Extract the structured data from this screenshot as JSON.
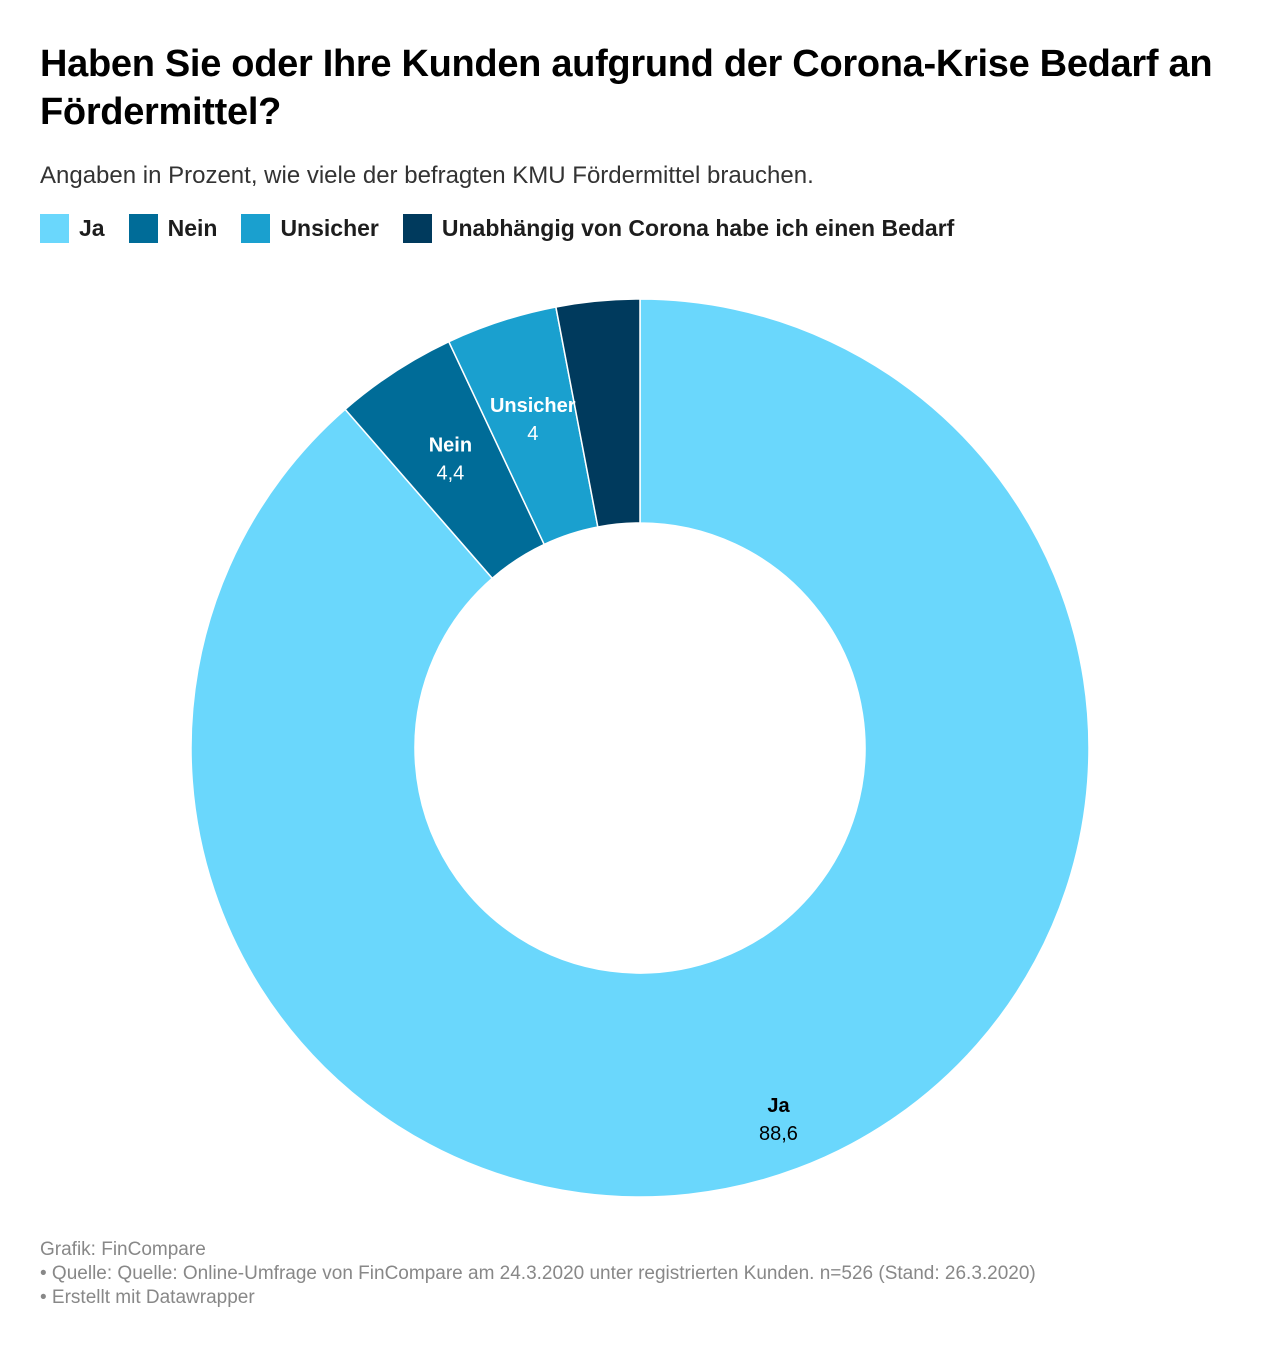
{
  "title": "Haben Sie oder Ihre Kunden aufgrund der Corona-Krise Bedarf an Fördermittel?",
  "subtitle": "Angaben in Prozent, wie viele der befragten KMU Fördermittel brauchen.",
  "legend": [
    {
      "label": "Ja",
      "color": "#6ad7fc"
    },
    {
      "label": "Nein",
      "color": "#006c98"
    },
    {
      "label": "Unsicher",
      "color": "#1aa0cf"
    },
    {
      "label": "Unabhängig von Corona habe ich einen Bedarf",
      "color": "#003a5d"
    }
  ],
  "chart_data": {
    "type": "pie",
    "variant": "donut",
    "title": "Haben Sie oder Ihre Kunden aufgrund der Corona-Krise Bedarf an Fördermittel?",
    "unit": "%",
    "categories": [
      "Ja",
      "Nein",
      "Unsicher",
      "Unabhängig von Corona habe ich einen Bedarf"
    ],
    "values": [
      88.6,
      4.4,
      4,
      3
    ],
    "value_labels": [
      "88,6",
      "4,4",
      "4",
      ""
    ],
    "colors": [
      "#6ad7fc",
      "#006c98",
      "#1aa0cf",
      "#003a5d"
    ],
    "label_colors": [
      "#000000",
      "#ffffff",
      "#ffffff",
      "#ffffff"
    ]
  },
  "footer": {
    "credit": "Grafik: FinCompare",
    "source": "• Quelle: Quelle: Online-Umfrage von FinCompare am 24.3.2020 unter registrierten Kunden. n=526 (Stand: 26.3.2020)",
    "tool": "• Erstellt mit Datawrapper"
  }
}
